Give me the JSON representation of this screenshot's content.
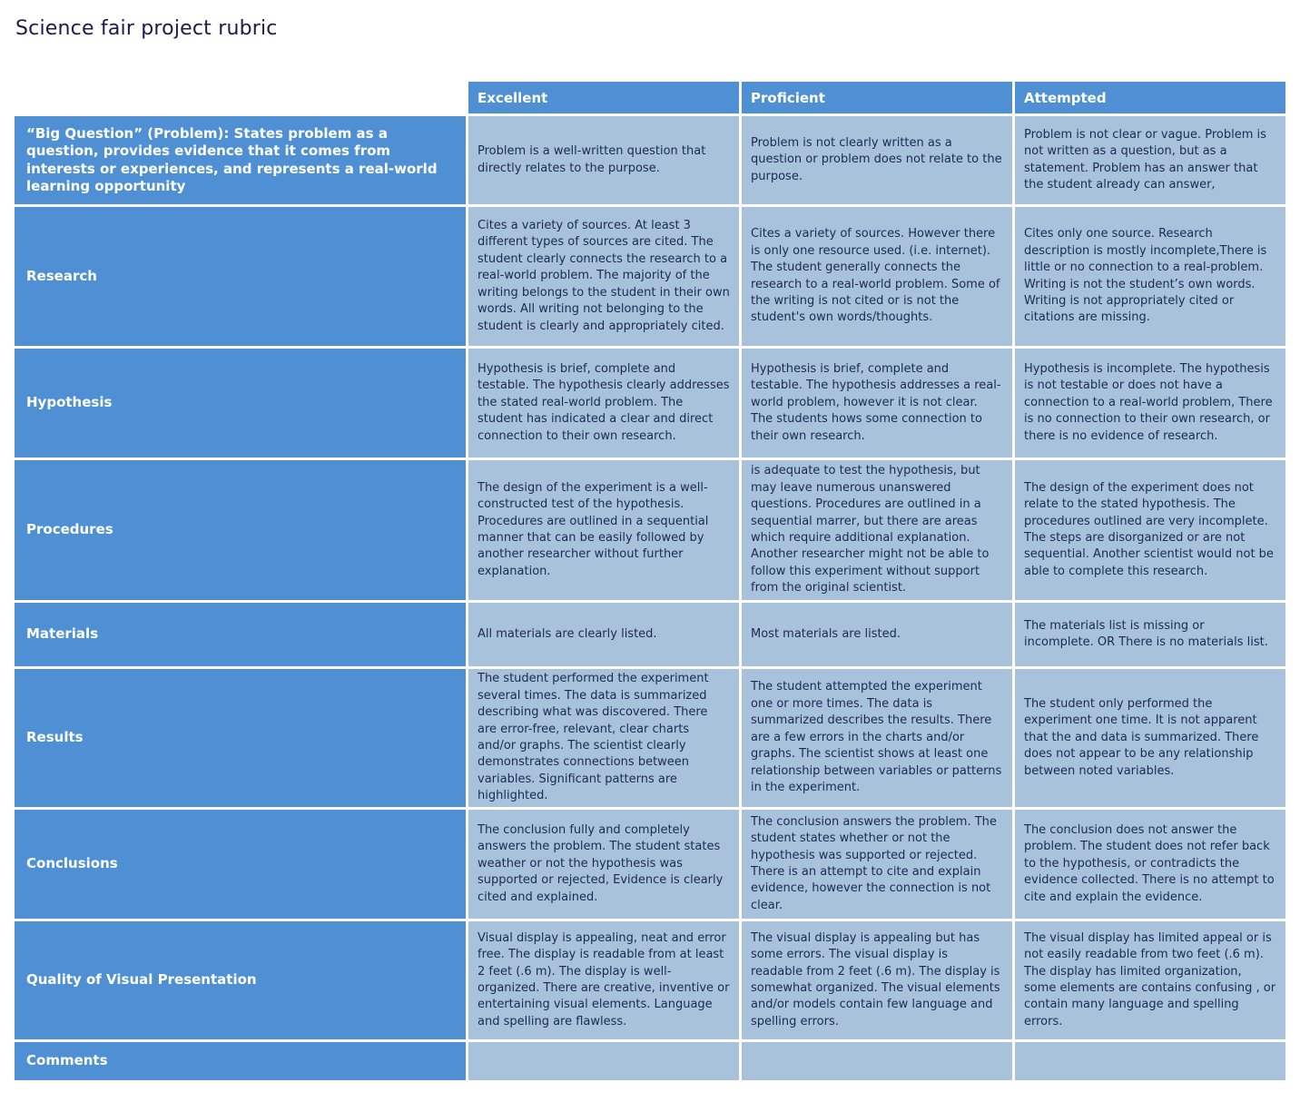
{
  "title": "Science fair project rubric",
  "colors": {
    "header_blue": "#4e90d3",
    "cell_light_blue": "#a9c2db",
    "header_text": "#ffffff",
    "cell_text": "#1b2a55",
    "title_text": "#1b1b4d",
    "grid_gap": "#ffffff"
  },
  "table": {
    "columns": [
      "Excellent",
      "Proficient",
      "Attempted"
    ],
    "rows": [
      {
        "label": "“Big Question” (Problem): States problem as a question, provides evidence that it comes from interests or experiences, and represents a real-world learning opportunity",
        "excellent": "Problem is a well-written question that directly relates to the purpose.",
        "proficient": "Problem is not clearly written as a question or problem does not relate to the purpose.",
        "attempted": "Problem is not clear or vague. Problem is not written as a question, but as a statement. Problem has an answer that the student already can answer,"
      },
      {
        "label": "Research",
        "excellent": "Cites a variety of sources. At least 3 different types of sources are cited. The student clearly connects the research to a real-world problem. The majority of the writing belongs to the student in their own words. All writing not belonging to the student is clearly and appropriately cited.",
        "proficient": "Cites a variety of sources. However there is only one resource used. (i.e. internet). The student generally connects the research to a real-world problem. Some of the writing is not cited or is not the student's own words/thoughts.",
        "attempted": "Cites only one source. Research description is mostly incomplete,There is little or no connection to a real-problem. Writing is not the student’s own words. Writing is not appropriately cited or citations are missing."
      },
      {
        "label": "Hypothesis",
        "excellent": "Hypothesis is brief, complete and testable. The hypothesis clearly addresses the stated real-world problem. The student has indicated a clear and direct connection to their own research.",
        "proficient": "Hypothesis is brief, complete and testable. The hypothesis addresses a real-world problem, however it is not clear. The students hows some connection to their own research.",
        "attempted": "Hypothesis is incomplete. The hypothesis is not testable or does not have a connection to a real-world problem, There is no connection to their own research, or there is no evidence of research."
      },
      {
        "label": "Procedures",
        "excellent": "The design of the experiment is a well-constructed test of the hypothesis. Procedures are outlined in a sequential manner that can be easily followed by another researcher without further explanation.",
        "proficient": "is adequate to test the hypothesis, but may leave numerous unanswered questions. Procedures are outlined in a sequential marrer, but there are areas which require additional explanation. Another researcher might not be able to follow this experiment without support from the original scientist.",
        "attempted": "The design of the experiment does not relate to the stated hypothesis. The procedures outlined are very incomplete. The steps are disorganized or are not sequential. Another scientist would not be able to complete this research."
      },
      {
        "label": "Materials",
        "excellent": "All materials are clearly listed.",
        "proficient": "Most materials are listed.",
        "attempted": "The materials list is missing or incomplete. OR There is no materials list."
      },
      {
        "label": "Results",
        "excellent": "The student performed the experiment several times. The data is summarized describing what was discovered. There are error-free, relevant, clear charts and/or graphs. The scientist clearly demonstrates connections between variables. Significant patterns are highlighted.",
        "proficient": "The student attempted the experiment one or more times. The data is summarized describes the results. There are a few errors in the charts and/or graphs. The scientist shows at least one relationship between variables or patterns in the experiment.",
        "attempted": "The student only performed the experiment one time. It is not apparent that the and data is summarized. There does not appear to be any relationship between noted variables."
      },
      {
        "label": "Conclusions",
        "excellent": "The conclusion fully and completely answers the problem. The student states weather or not the hypothesis was supported or rejected, Evidence is clearly cited and explained.",
        "proficient": "The conclusion answers the problem. The student states whether or not the hypothesis was supported or rejected. There is an attempt to cite and explain evidence, however the connection is not clear.",
        "attempted": "The conclusion does not answer the problem. The student does not refer back to the hypothesis, or contradicts the evidence collected. There is no attempt to cite and explain the evidence."
      },
      {
        "label": "Quality of Visual Presentation",
        "excellent": "Visual display is appealing, neat and error free. The display is readable from at least 2 feet (.6 m). The display is well-organized. There are creative, inventive or entertaining visual elements. Language and spelling are flawless.",
        "proficient": "The visual display is appealing but has some errors. The visual display is readable from 2 feet (.6 m). The display is somewhat organized. The visual elements and/or models contain few language and spelling errors.",
        "attempted": "The visual display has limited appeal or is not easily readable from two feet (.6 m). The display has limited organization, some elements are contains confusing , or contain many language and spelling errors."
      },
      {
        "label": "Comments",
        "excellent": "",
        "proficient": "",
        "attempted": ""
      }
    ]
  }
}
